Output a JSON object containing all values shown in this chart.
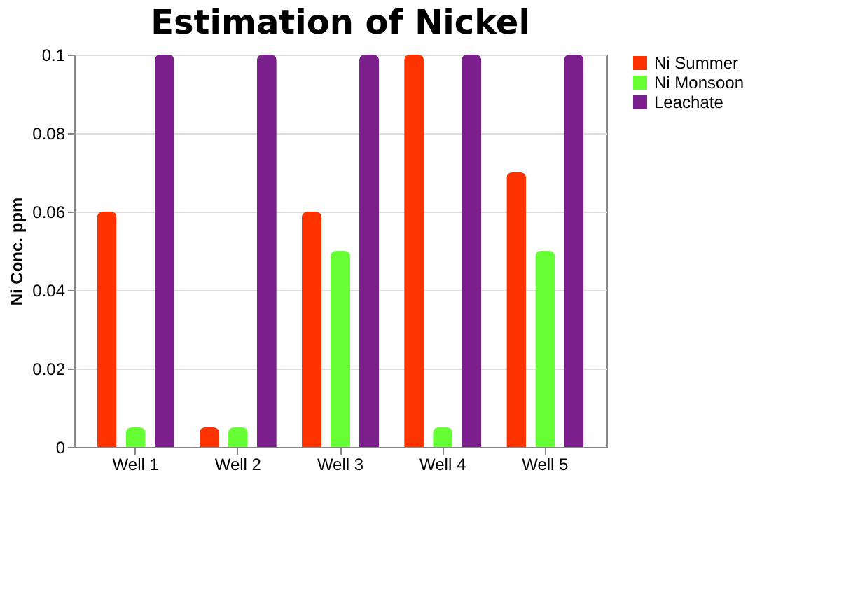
{
  "chart_data": {
    "type": "bar",
    "title": "Estimation of Nickel",
    "ylabel": "Ni Conc. ppm",
    "categories": [
      "Well 1",
      "Well 2",
      "Well 3",
      "Well 4",
      "Well 5"
    ],
    "series": [
      {
        "name": "Ni Summer",
        "color": "#ff3300",
        "values": [
          0.06,
          0.005,
          0.06,
          0.1,
          0.07
        ]
      },
      {
        "name": "Ni Monsoon",
        "color": "#66ff33",
        "values": [
          0.005,
          0.005,
          0.05,
          0.005,
          0.05
        ]
      },
      {
        "name": "Leachate",
        "color": "#7b1f8c",
        "values": [
          0.1,
          0.1,
          0.1,
          0.1,
          0.1
        ]
      }
    ],
    "ylim": [
      0,
      0.1
    ],
    "yticks": [
      0,
      0.02,
      0.04,
      0.06,
      0.08,
      0.1
    ],
    "grid": "y",
    "legend": "right"
  }
}
